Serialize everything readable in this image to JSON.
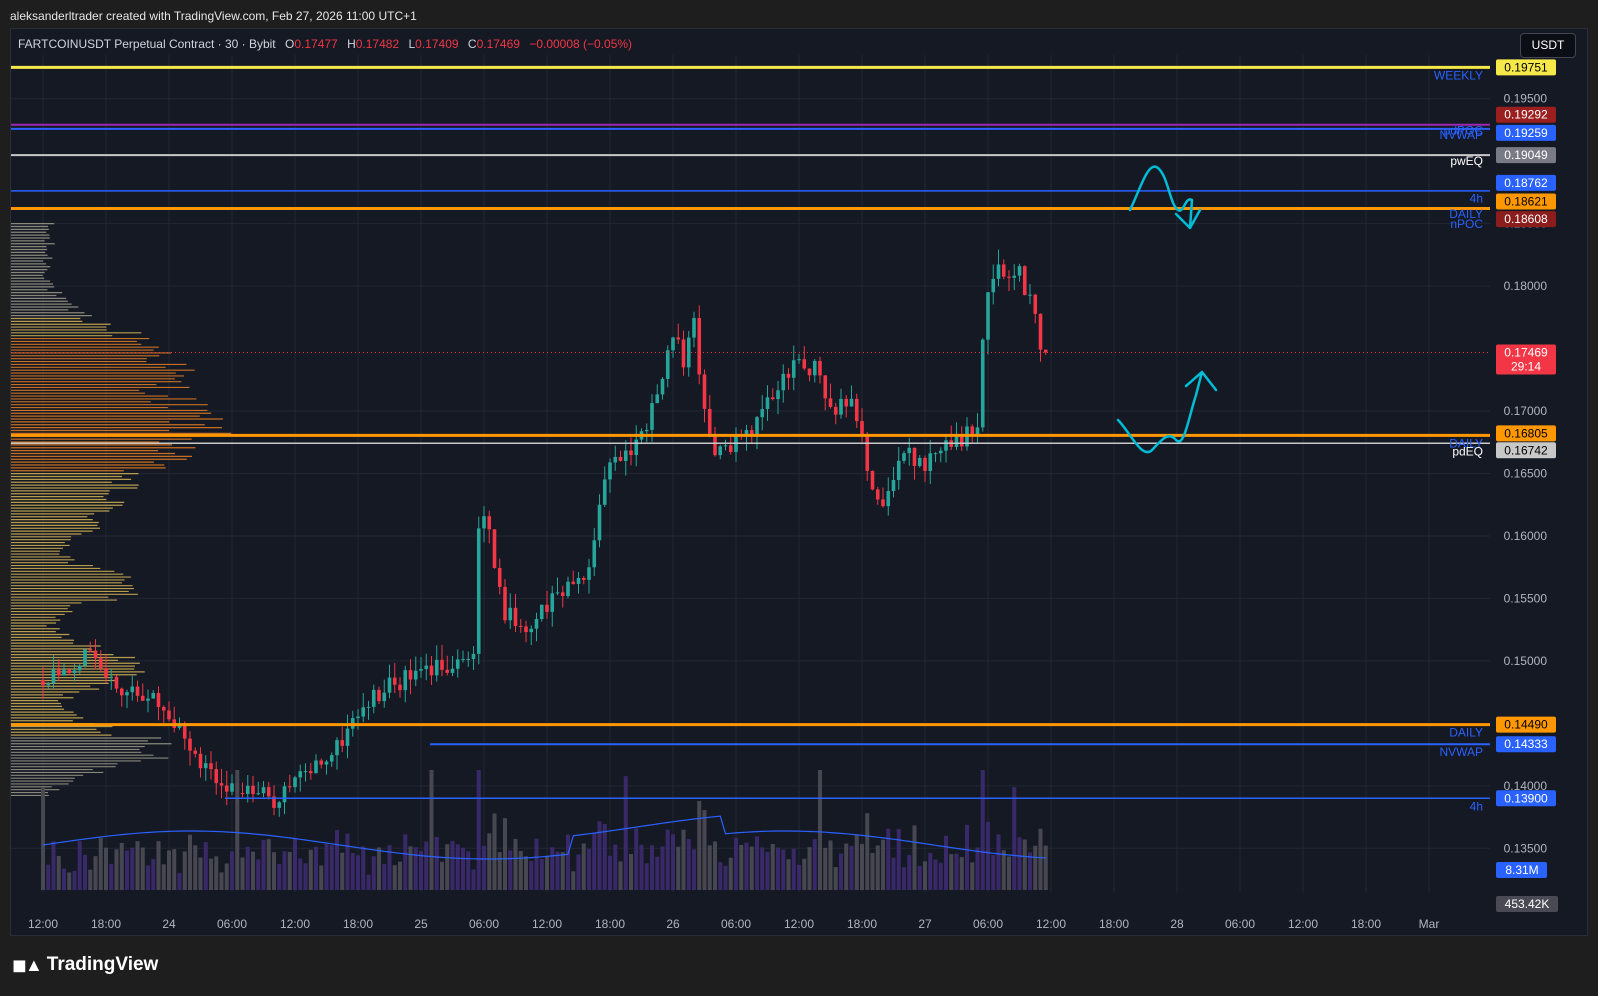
{
  "header": {
    "credit": "aleksanderltrader created with TradingView.com, Feb 27, 2026 11:00 UTC+1",
    "symbol": "FARTCOINUSDT Perpetual Contract · 30 · Bybit",
    "ohlc": {
      "o_label": "O",
      "o": "0.17477",
      "h_label": "H",
      "h": "0.17482",
      "l_label": "L",
      "l": "0.17409",
      "c_label": "C",
      "c": "0.17469",
      "change": "−0.00008 (−0.05%)"
    },
    "currency": "USDT"
  },
  "brand": "TradingView",
  "colors": {
    "up": "#26a69a",
    "down": "#f23645",
    "bg": "#151924",
    "grid": "#232733",
    "yellow": "#f5e94a",
    "orange": "#ff9800",
    "blue": "#2962ff",
    "gray": "#c8c8c8",
    "cyan": "#00bcd4",
    "maroon": "#8c1d1d"
  },
  "chart_data": {
    "type": "candlestick",
    "timeframe": "30",
    "ylim": [
      0.1315,
      0.1985
    ],
    "price_ticks": [
      "0.19500",
      "0.18500",
      "0.18000",
      "0.17000",
      "0.16500",
      "0.16000",
      "0.15500",
      "0.15000",
      "0.14000",
      "0.13500"
    ],
    "time_ticks": [
      {
        "label": "12:00",
        "slot": 0
      },
      {
        "label": "18:00",
        "slot": 12
      },
      {
        "label": "24",
        "slot": 24
      },
      {
        "label": "06:00",
        "slot": 36
      },
      {
        "label": "12:00",
        "slot": 48
      },
      {
        "label": "18:00",
        "slot": 60
      },
      {
        "label": "25",
        "slot": 72
      },
      {
        "label": "06:00",
        "slot": 84
      },
      {
        "label": "12:00",
        "slot": 96
      },
      {
        "label": "18:00",
        "slot": 108
      },
      {
        "label": "26",
        "slot": 120
      },
      {
        "label": "06:00",
        "slot": 132
      },
      {
        "label": "12:00",
        "slot": 144
      },
      {
        "label": "18:00",
        "slot": 156
      },
      {
        "label": "27",
        "slot": 168
      },
      {
        "label": "06:00",
        "slot": 180
      },
      {
        "label": "12:00",
        "slot": 192
      },
      {
        "label": "18:00",
        "slot": 204
      },
      {
        "label": "28",
        "slot": 216
      },
      {
        "label": "06:00",
        "slot": 228
      },
      {
        "label": "12:00",
        "slot": 240
      },
      {
        "label": "18:00",
        "slot": 252
      },
      {
        "label": "Mar",
        "slot": 264
      }
    ],
    "anchors": [
      [
        0,
        0.1485
      ],
      [
        8,
        0.1505
      ],
      [
        14,
        0.148
      ],
      [
        20,
        0.1475
      ],
      [
        26,
        0.1445
      ],
      [
        32,
        0.141
      ],
      [
        38,
        0.1395
      ],
      [
        44,
        0.139
      ],
      [
        50,
        0.141
      ],
      [
        56,
        0.143
      ],
      [
        60,
        0.146
      ],
      [
        66,
        0.148
      ],
      [
        72,
        0.149
      ],
      [
        78,
        0.15
      ],
      [
        82,
        0.1505
      ],
      [
        83,
        0.16
      ],
      [
        84,
        0.1615
      ],
      [
        86,
        0.158
      ],
      [
        88,
        0.154
      ],
      [
        92,
        0.1525
      ],
      [
        96,
        0.1545
      ],
      [
        100,
        0.156
      ],
      [
        104,
        0.1575
      ],
      [
        106,
        0.162
      ],
      [
        108,
        0.1655
      ],
      [
        112,
        0.167
      ],
      [
        116,
        0.17
      ],
      [
        118,
        0.173
      ],
      [
        120,
        0.176
      ],
      [
        122,
        0.174
      ],
      [
        124,
        0.177
      ],
      [
        126,
        0.17
      ],
      [
        128,
        0.167
      ],
      [
        132,
        0.1675
      ],
      [
        136,
        0.169
      ],
      [
        140,
        0.172
      ],
      [
        144,
        0.174
      ],
      [
        148,
        0.173
      ],
      [
        150,
        0.17
      ],
      [
        154,
        0.1715
      ],
      [
        156,
        0.168
      ],
      [
        158,
        0.164
      ],
      [
        160,
        0.1625
      ],
      [
        164,
        0.1665
      ],
      [
        168,
        0.166
      ],
      [
        172,
        0.1675
      ],
      [
        176,
        0.168
      ],
      [
        178,
        0.169
      ],
      [
        179,
        0.1765
      ],
      [
        180,
        0.18
      ],
      [
        182,
        0.1825
      ],
      [
        184,
        0.18
      ],
      [
        186,
        0.181
      ],
      [
        188,
        0.179
      ],
      [
        190,
        0.175
      ],
      [
        191,
        0.1747
      ]
    ],
    "last_price": "0.17469",
    "countdown": "29:14",
    "levels": [
      {
        "label": "WEEKLY",
        "price": 0.19751,
        "value": "0.19751",
        "color": "#f5e94a",
        "tag_bg": "#f5e94a",
        "tag_fg": "#000000",
        "width": 3
      },
      {
        "label": "pdPOC",
        "price": 0.19292,
        "value": "0.19292",
        "color": "#9c27b0",
        "tag_bg": "#9c1f1f",
        "tag_fg": "#ffffff",
        "width": 2
      },
      {
        "label": "NVWAP",
        "price": 0.19259,
        "value": "0.19259",
        "color": "#2962ff",
        "tag_bg": "#2962ff",
        "tag_fg": "#ffffff",
        "width": 2
      },
      {
        "label": "pwEQ",
        "price": 0.19049,
        "value": "0.19049",
        "color": "#c8c8c8",
        "tag_bg": "#787b86",
        "tag_fg": "#ffffff",
        "width": 2
      },
      {
        "label": "",
        "price": 0.18762,
        "value": "0.18762",
        "color": "#2962ff",
        "tag_bg": "#2962ff",
        "tag_fg": "#ffffff",
        "width": 1.5
      },
      {
        "label": "4h",
        "price": 0.18621,
        "value": "0.18621",
        "color": "#ff9800",
        "tag_bg": "#ff9800",
        "tag_fg": "#000000",
        "width": 3
      },
      {
        "label": "DAILY",
        "price": 0.18608,
        "value": "0.18608",
        "color": "#ff9800",
        "tag_bg": "#8c1d1d",
        "tag_fg": "#ffffff",
        "width": 0
      },
      {
        "label": "DAILY",
        "price": 0.16805,
        "value": "0.16805",
        "color": "#ff9800",
        "tag_bg": "#ff9800",
        "tag_fg": "#000000",
        "width": 3
      },
      {
        "label": "pdEQ",
        "price": 0.16742,
        "value": "0.16742",
        "color": "#c8c8c8",
        "tag_bg": "#c8c8c8",
        "tag_fg": "#000000",
        "width": 1.5
      },
      {
        "label": "DAILY",
        "price": 0.1449,
        "value": "0.14490",
        "color": "#ff9800",
        "tag_bg": "#ff9800",
        "tag_fg": "#000000",
        "width": 3
      },
      {
        "label": "NVWAP",
        "price": 0.14333,
        "value": "0.14333",
        "color": "#2962ff",
        "tag_bg": "#2962ff",
        "tag_fg": "#ffffff",
        "width": 2
      },
      {
        "label": "4h",
        "price": 0.139,
        "value": "0.13900",
        "color": "#2962ff",
        "tag_bg": "#2962ff",
        "tag_fg": "#ffffff",
        "width": 1.5
      }
    ],
    "extra_labels": [
      "nPOC"
    ],
    "volume": {
      "ma_value": "8.31M",
      "current": "453.42K"
    }
  }
}
